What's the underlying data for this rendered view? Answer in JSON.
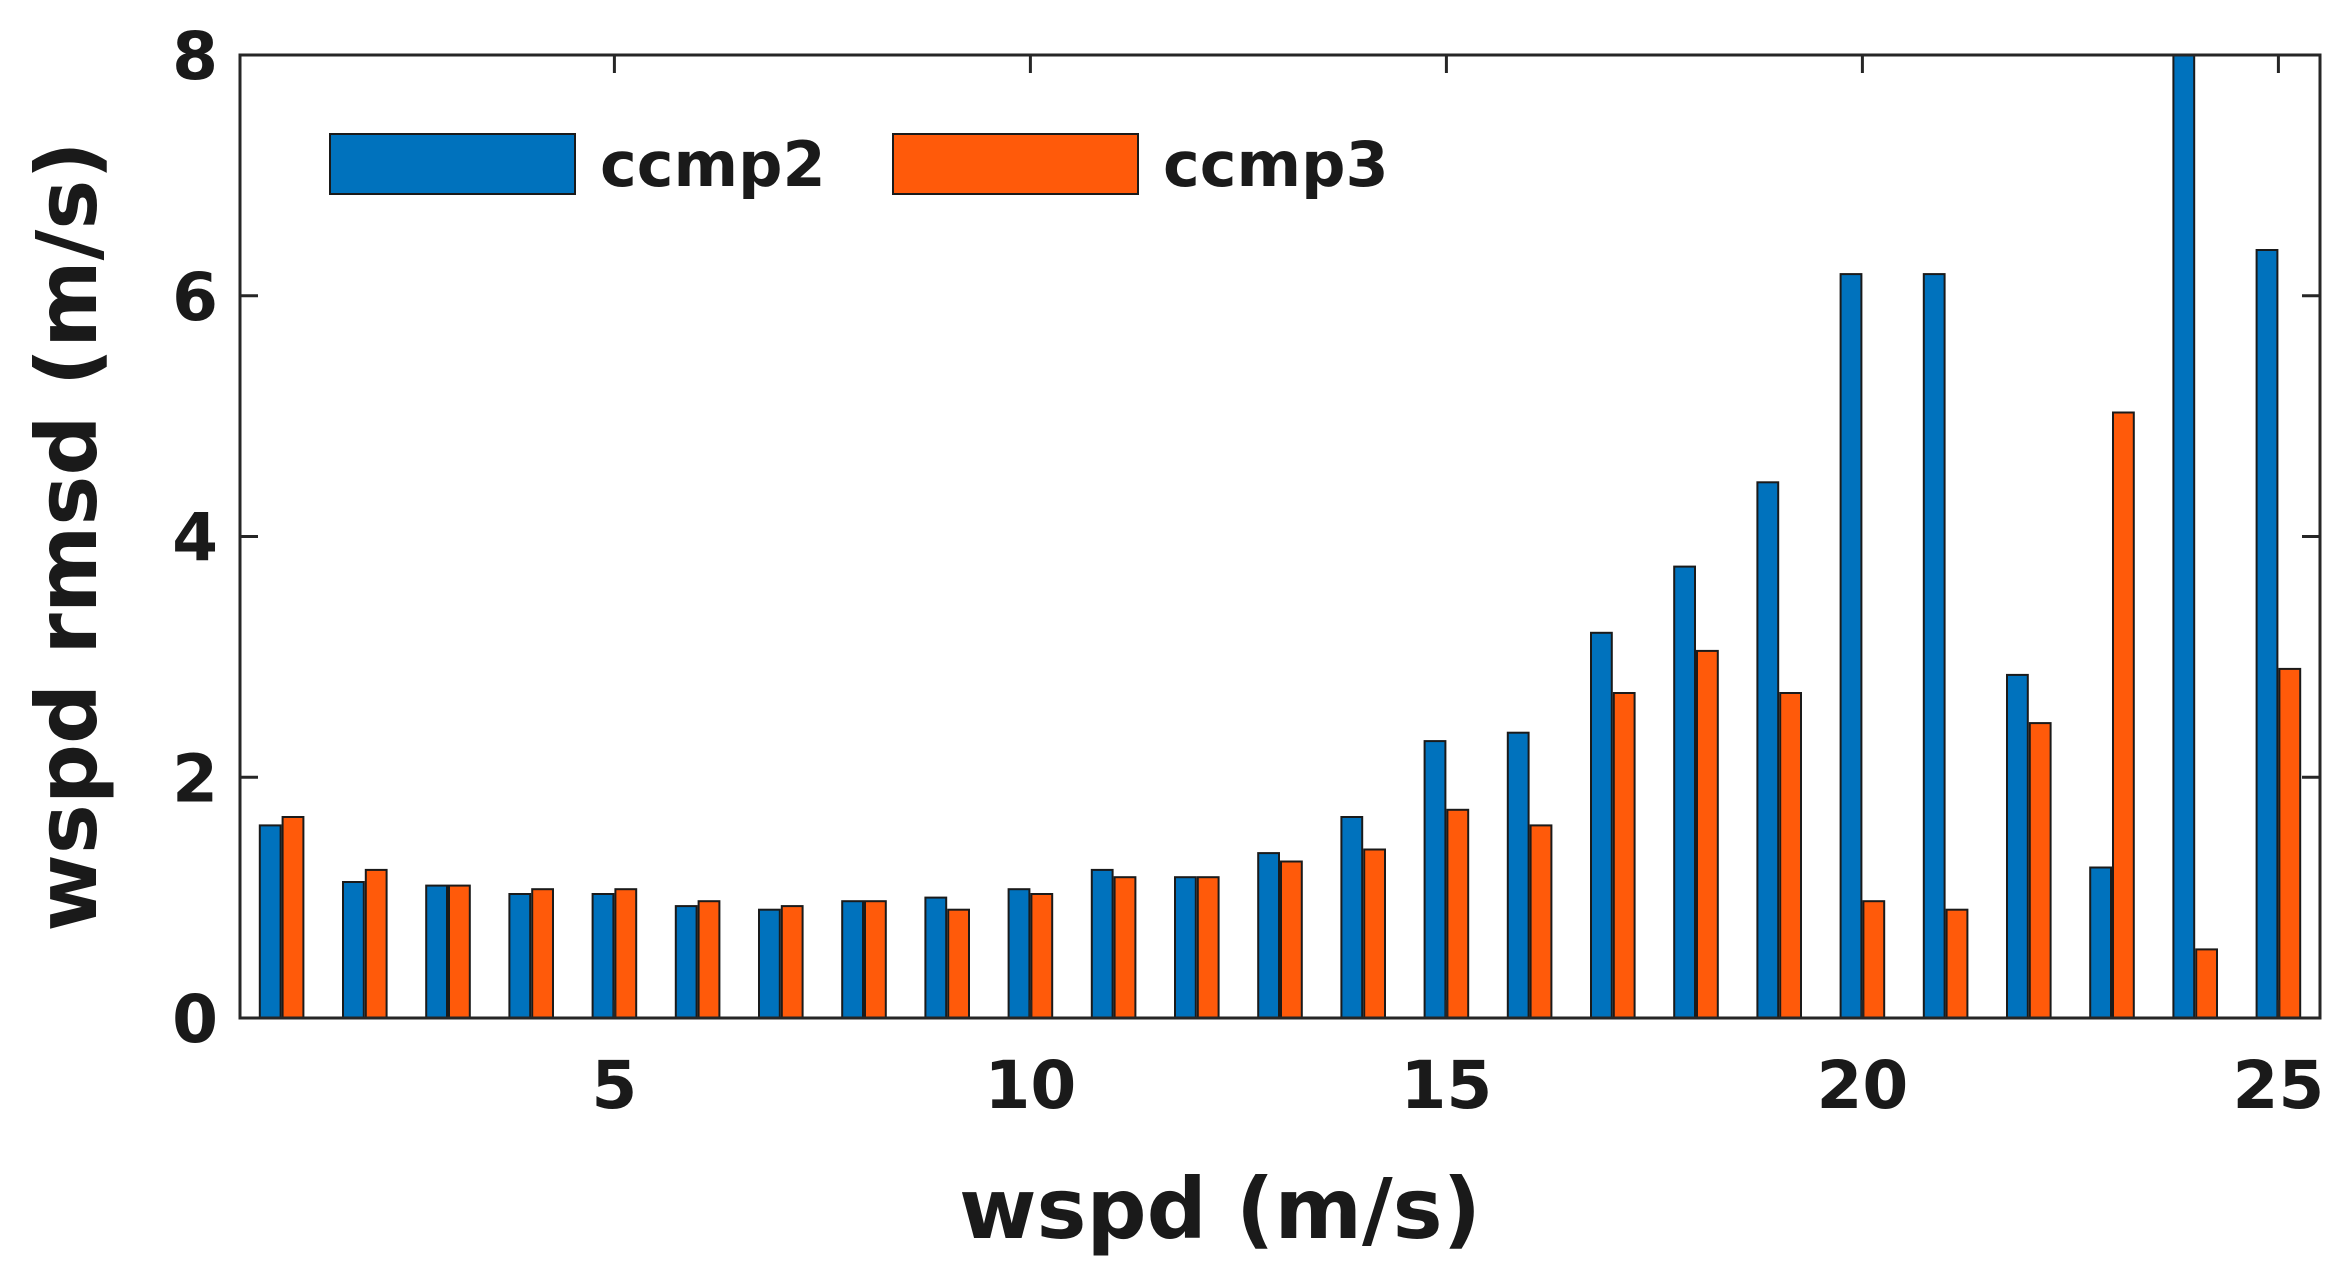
{
  "chart_data": {
    "type": "bar",
    "xlabel": "wspd (m/s)",
    "ylabel": "wspd rmsd (m/s)",
    "title": "",
    "x": [
      1,
      2,
      3,
      4,
      5,
      6,
      7,
      8,
      9,
      10,
      11,
      12,
      13,
      14,
      15,
      16,
      17,
      18,
      19,
      20,
      21,
      22,
      23,
      24,
      25
    ],
    "xlim": [
      0.5,
      25.5
    ],
    "ylim": [
      0,
      8
    ],
    "xticks": [
      5,
      10,
      15,
      20,
      25
    ],
    "xtick_labels": [
      "5",
      "10",
      "15",
      "20",
      "25"
    ],
    "yticks": [
      0,
      2,
      4,
      6,
      8
    ],
    "ytick_labels": [
      "0",
      "2",
      "4",
      "6",
      "8"
    ],
    "grid": false,
    "legend_position": "top-left",
    "series": [
      {
        "name": "ccmp2",
        "color": "#0072BD",
        "values": [
          1.6,
          1.13,
          1.1,
          1.03,
          1.03,
          0.93,
          0.9,
          0.97,
          1.0,
          1.07,
          1.23,
          1.17,
          1.37,
          1.67,
          2.3,
          2.37,
          3.2,
          3.75,
          4.45,
          6.18,
          6.18,
          2.85,
          1.25,
          8.0,
          6.38
        ]
      },
      {
        "name": "ccmp3",
        "color": "#FF5A0A",
        "values": [
          1.67,
          1.23,
          1.1,
          1.07,
          1.07,
          0.97,
          0.93,
          0.97,
          0.9,
          1.03,
          1.17,
          1.17,
          1.3,
          1.4,
          1.73,
          1.6,
          2.7,
          3.05,
          2.7,
          0.97,
          0.9,
          2.45,
          5.03,
          0.57,
          2.9
        ]
      }
    ]
  }
}
